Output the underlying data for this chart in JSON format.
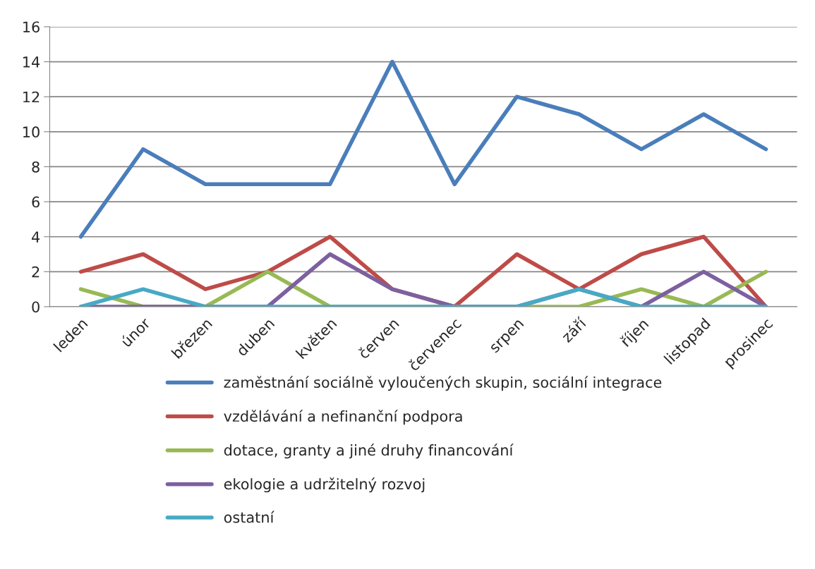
{
  "chart_data": {
    "type": "line",
    "categories": [
      "leden",
      "únor",
      "březen",
      "duben",
      "květen",
      "červen",
      "červenec",
      "srpen",
      "září",
      "říjen",
      "listopad",
      "prosinec"
    ],
    "series": [
      {
        "name": "zaměstnání sociálně vyloučených skupin, sociální integrace",
        "color": "#4a7ebb",
        "values": [
          4,
          9,
          7,
          7,
          7,
          14,
          7,
          12,
          11,
          9,
          11,
          9
        ]
      },
      {
        "name": "vzdělávání a nefinanční podpora",
        "color": "#be4b48",
        "values": [
          2,
          3,
          1,
          2,
          4,
          1,
          0,
          3,
          1,
          3,
          4,
          0
        ]
      },
      {
        "name": "dotace, granty a jiné druhy financování",
        "color": "#98b954",
        "values": [
          1,
          0,
          0,
          2,
          0,
          0,
          0,
          0,
          0,
          1,
          0,
          2
        ]
      },
      {
        "name": "ekologie a udržitelný rozvoj",
        "color": "#7d60a0",
        "values": [
          0,
          0,
          0,
          0,
          3,
          1,
          0,
          0,
          1,
          0,
          2,
          0
        ]
      },
      {
        "name": "ostatní",
        "color": "#46aac5",
        "values": [
          0,
          1,
          0,
          0,
          0,
          0,
          0,
          0,
          1,
          0,
          0,
          0
        ]
      }
    ],
    "ylim": [
      0,
      16
    ],
    "yticks": [
      0,
      2,
      4,
      6,
      8,
      10,
      12,
      14,
      16
    ],
    "grid": "y",
    "legend": "bottom",
    "marker": "none",
    "line_style": "solid"
  }
}
